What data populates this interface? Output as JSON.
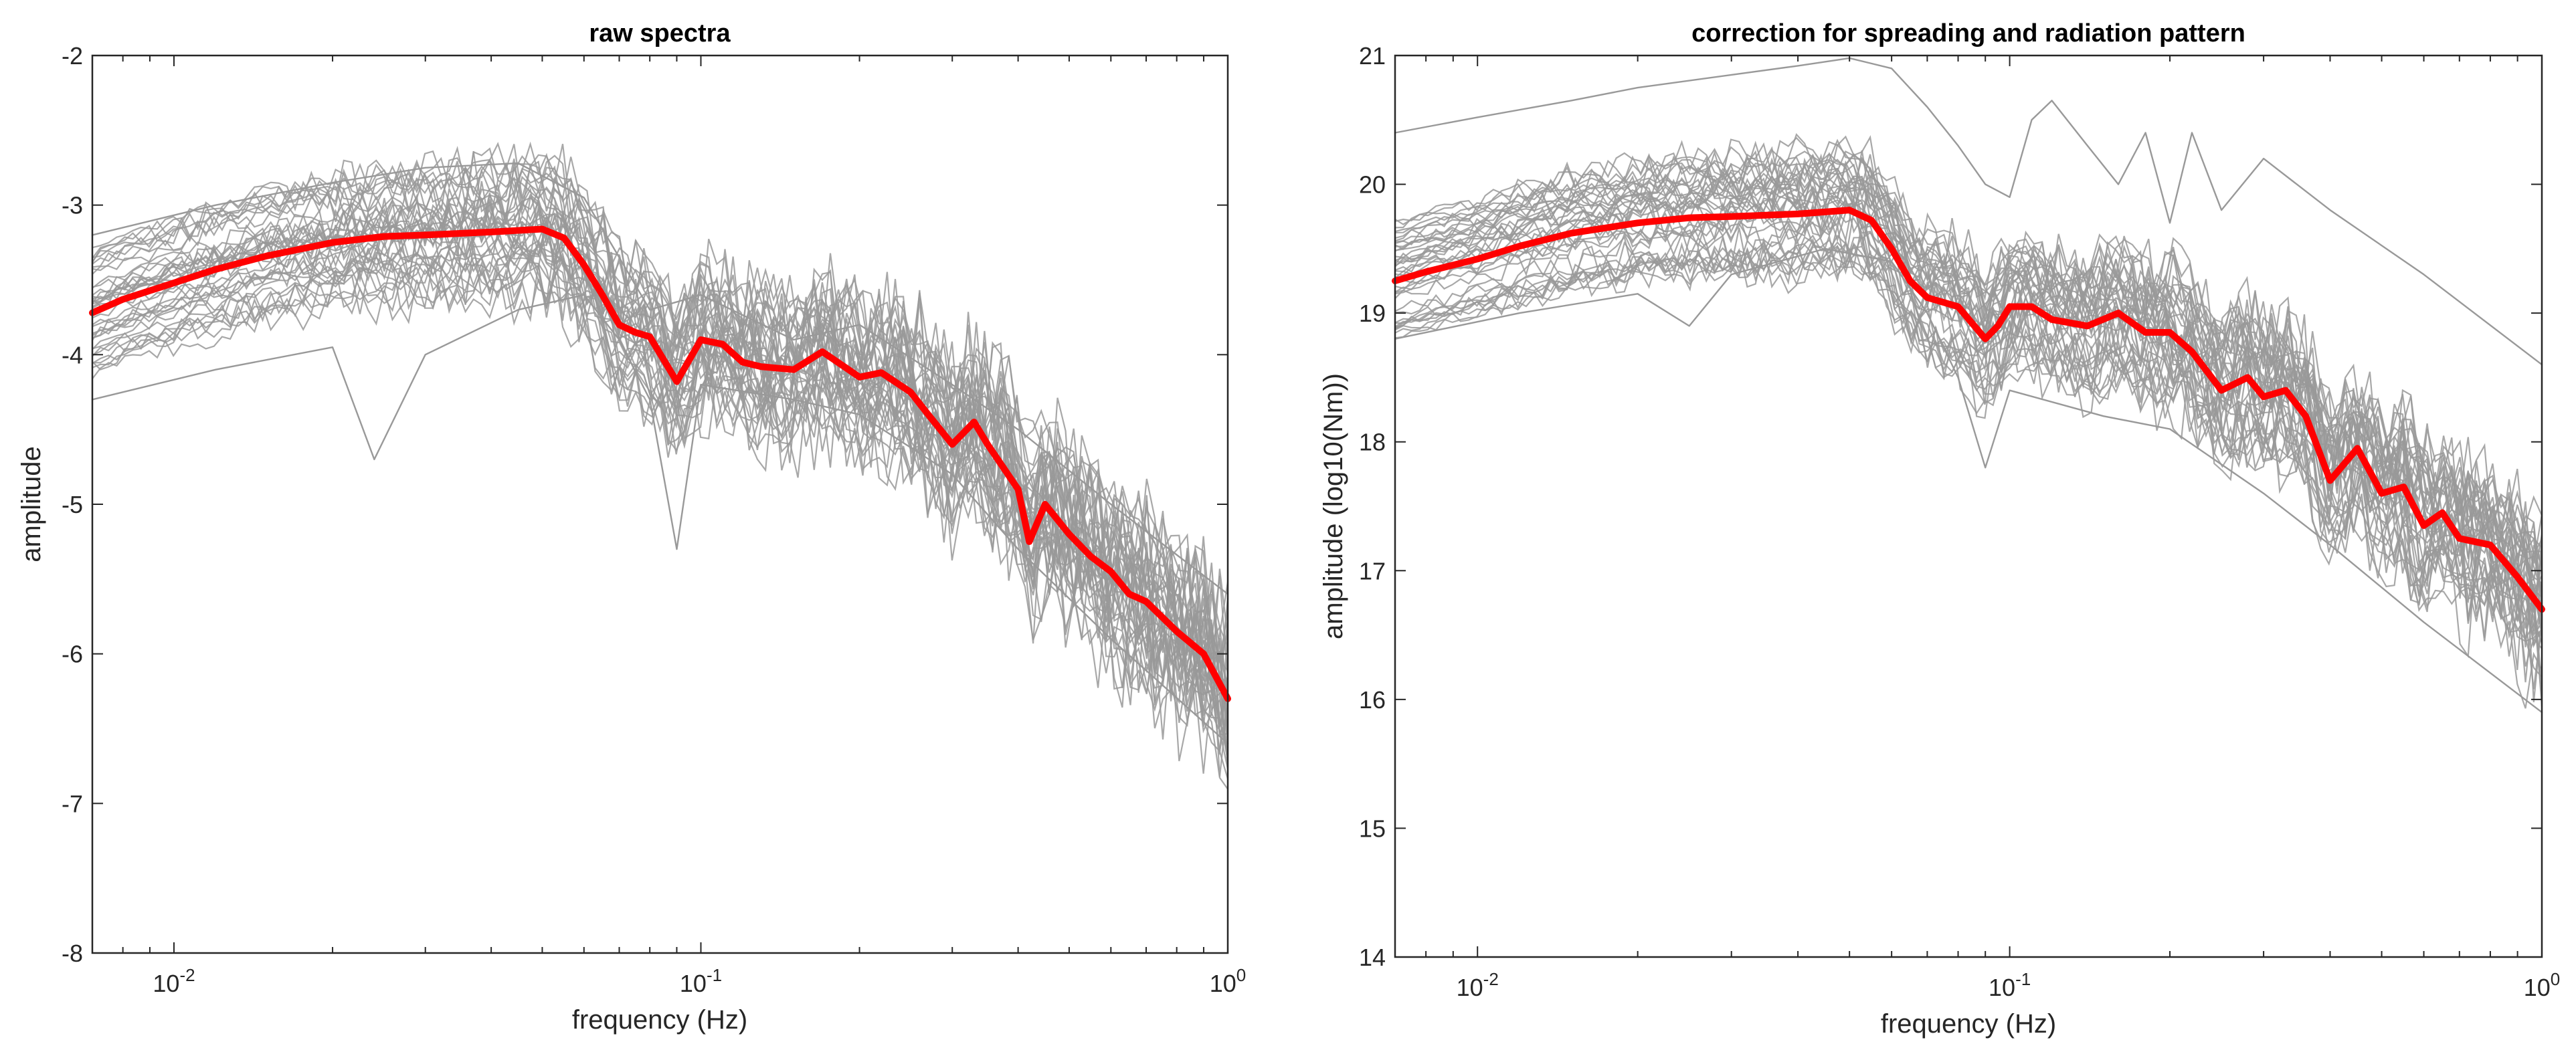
{
  "colors": {
    "mean_line": "#ff0000",
    "individual_lines": "#999999",
    "axes": "#262626",
    "background": "#ffffff"
  },
  "chart_data": [
    {
      "type": "line",
      "title": "raw spectra",
      "xlabel": "frequency (Hz)",
      "ylabel": "amplitude",
      "xscale": "log",
      "xlim": [
        0.007,
        1
      ],
      "ylim": [
        -8,
        -2
      ],
      "grid": false,
      "xtick_labels": [
        {
          "value": 0.01,
          "base": "10",
          "exp": "-2"
        },
        {
          "value": 0.1,
          "base": "10",
          "exp": "-1"
        },
        {
          "value": 1,
          "base": "10",
          "exp": "0"
        }
      ],
      "ytick_labels": [
        "-8",
        "-7",
        "-6",
        "-5",
        "-4",
        "-3",
        "-2"
      ],
      "series": [
        {
          "role": "mean",
          "color": "#ff0000",
          "x": [
            0.007,
            0.008,
            0.01,
            0.012,
            0.015,
            0.02,
            0.025,
            0.03,
            0.04,
            0.05,
            0.055,
            0.06,
            0.065,
            0.07,
            0.075,
            0.08,
            0.09,
            0.1,
            0.11,
            0.12,
            0.13,
            0.15,
            0.17,
            0.2,
            0.22,
            0.25,
            0.27,
            0.3,
            0.33,
            0.35,
            0.4,
            0.42,
            0.45,
            0.5,
            0.55,
            0.6,
            0.65,
            0.7,
            0.8,
            0.9,
            1.0
          ],
          "y": [
            -3.72,
            -3.63,
            -3.52,
            -3.43,
            -3.34,
            -3.25,
            -3.21,
            -3.2,
            -3.18,
            -3.16,
            -3.22,
            -3.4,
            -3.6,
            -3.8,
            -3.85,
            -3.88,
            -4.18,
            -3.9,
            -3.93,
            -4.05,
            -4.08,
            -4.1,
            -3.98,
            -4.15,
            -4.12,
            -4.25,
            -4.4,
            -4.6,
            -4.45,
            -4.6,
            -4.9,
            -5.25,
            -5.0,
            -5.2,
            -5.35,
            -5.45,
            -5.6,
            -5.65,
            -5.85,
            -6.0,
            -6.3
          ]
        },
        {
          "role": "individual",
          "color": "#999999",
          "x": [
            0.007,
            0.012,
            0.02,
            0.03,
            0.045,
            0.06,
            0.07,
            0.08,
            0.1,
            0.15,
            0.2,
            0.3,
            0.4,
            0.6,
            1.0
          ],
          "y": [
            -3.2,
            -3.0,
            -2.85,
            -2.75,
            -2.72,
            -2.95,
            -3.35,
            -3.7,
            -3.6,
            -3.9,
            -3.8,
            -4.2,
            -4.5,
            -5.0,
            -5.6
          ]
        },
        {
          "role": "individual",
          "color": "#999999",
          "x": [
            0.007,
            0.012,
            0.02,
            0.024,
            0.03,
            0.045,
            0.06,
            0.07,
            0.08,
            0.09,
            0.1,
            0.15,
            0.2,
            0.3,
            0.4,
            0.6,
            1.0
          ],
          "y": [
            -4.3,
            -4.1,
            -3.95,
            -4.7,
            -4.0,
            -3.7,
            -3.6,
            -3.9,
            -4.3,
            -5.3,
            -4.2,
            -4.3,
            -4.4,
            -4.8,
            -5.3,
            -5.9,
            -6.6
          ]
        }
      ]
    },
    {
      "type": "line",
      "title": "correction for spreading and radiation pattern",
      "xlabel": "frequency (Hz)",
      "ylabel": "amplitude (log10(Nm))",
      "xscale": "log",
      "xlim": [
        0.007,
        1
      ],
      "ylim": [
        14,
        21
      ],
      "grid": false,
      "xtick_labels": [
        {
          "value": 0.01,
          "base": "10",
          "exp": "-2"
        },
        {
          "value": 0.1,
          "base": "10",
          "exp": "-1"
        },
        {
          "value": 1,
          "base": "10",
          "exp": "0"
        }
      ],
      "ytick_labels": [
        "14",
        "15",
        "16",
        "17",
        "18",
        "19",
        "20",
        "21"
      ],
      "series": [
        {
          "role": "mean",
          "color": "#ff0000",
          "x": [
            0.007,
            0.008,
            0.01,
            0.012,
            0.015,
            0.02,
            0.025,
            0.03,
            0.04,
            0.05,
            0.055,
            0.06,
            0.065,
            0.07,
            0.08,
            0.09,
            0.095,
            0.1,
            0.11,
            0.12,
            0.14,
            0.16,
            0.18,
            0.2,
            0.22,
            0.25,
            0.28,
            0.3,
            0.33,
            0.36,
            0.4,
            0.45,
            0.5,
            0.55,
            0.6,
            0.65,
            0.7,
            0.8,
            0.9,
            1.0
          ],
          "y": [
            19.25,
            19.32,
            19.42,
            19.52,
            19.62,
            19.7,
            19.74,
            19.75,
            19.77,
            19.8,
            19.72,
            19.5,
            19.25,
            19.12,
            19.05,
            18.8,
            18.9,
            19.05,
            19.05,
            18.95,
            18.9,
            19.0,
            18.85,
            18.85,
            18.7,
            18.4,
            18.5,
            18.35,
            18.4,
            18.2,
            17.7,
            17.95,
            17.6,
            17.65,
            17.35,
            17.45,
            17.25,
            17.2,
            16.95,
            16.7
          ]
        },
        {
          "role": "individual",
          "color": "#999999",
          "x": [
            0.007,
            0.01,
            0.015,
            0.02,
            0.03,
            0.04,
            0.05,
            0.06,
            0.07,
            0.08,
            0.09,
            0.1,
            0.11,
            0.12,
            0.14,
            0.16,
            0.18,
            0.2,
            0.22,
            0.25,
            0.3,
            0.4,
            0.6,
            1.0
          ],
          "y": [
            20.4,
            20.52,
            20.65,
            20.75,
            20.85,
            20.92,
            20.98,
            20.9,
            20.6,
            20.3,
            20.0,
            19.9,
            20.5,
            20.65,
            20.3,
            20.0,
            20.4,
            19.7,
            20.4,
            19.8,
            20.2,
            19.8,
            19.3,
            18.6
          ]
        },
        {
          "role": "individual",
          "color": "#999999",
          "x": [
            0.007,
            0.012,
            0.02,
            0.025,
            0.03,
            0.045,
            0.06,
            0.07,
            0.08,
            0.09,
            0.1,
            0.15,
            0.2,
            0.3,
            0.4,
            0.6,
            1.0
          ],
          "y": [
            18.8,
            19.0,
            19.15,
            18.9,
            19.3,
            19.5,
            19.4,
            19.0,
            18.5,
            17.8,
            18.4,
            18.2,
            18.1,
            17.6,
            17.2,
            16.6,
            15.9
          ]
        }
      ]
    }
  ]
}
